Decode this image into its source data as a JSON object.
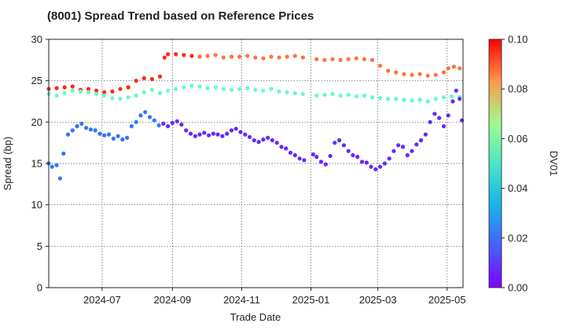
{
  "title": "(8001)   Spread Trend based on Reference Prices",
  "chart_data": {
    "type": "scatter",
    "title": "(8001)   Spread Trend based on Reference Prices",
    "xlabel": "Trade Date",
    "ylabel": "Spread (bp)",
    "colorbar_label": "DV01",
    "xlim": [
      "2024-05-15",
      "2025-05-15"
    ],
    "ylim": [
      0,
      30
    ],
    "y_ticks": [
      0,
      5,
      10,
      15,
      20,
      25,
      30
    ],
    "x_ticks": [
      {
        "date": "2024-07-01",
        "label": "2024-07"
      },
      {
        "date": "2024-09-01",
        "label": "2024-09"
      },
      {
        "date": "2024-11-01",
        "label": "2024-11"
      },
      {
        "date": "2025-01-01",
        "label": "2025-01"
      },
      {
        "date": "2025-03-01",
        "label": "2025-03"
      },
      {
        "date": "2025-05-01",
        "label": "2025-05"
      }
    ],
    "colorbar_ticks": [
      "0.00",
      "0.02",
      "0.04",
      "0.06",
      "0.08",
      "0.10"
    ],
    "colorbar_range": [
      0,
      0.1
    ],
    "colormap": "rainbow",
    "grid": true,
    "series": [
      {
        "dv01": 0.095,
        "points": [
          [
            "2024-05-15",
            24.0
          ],
          [
            "2024-05-22",
            24.1
          ],
          [
            "2024-05-29",
            24.2
          ],
          [
            "2024-06-05",
            24.3
          ],
          [
            "2024-06-12",
            23.9
          ],
          [
            "2024-06-19",
            24.0
          ],
          [
            "2024-06-26",
            23.8
          ],
          [
            "2024-07-03",
            23.6
          ],
          [
            "2024-07-10",
            23.7
          ],
          [
            "2024-07-17",
            24.0
          ],
          [
            "2024-07-24",
            24.2
          ],
          [
            "2024-07-31",
            25.0
          ],
          [
            "2024-08-07",
            25.3
          ],
          [
            "2024-08-14",
            25.2
          ],
          [
            "2024-08-21",
            25.5
          ],
          [
            "2024-08-25",
            27.8
          ],
          [
            "2024-08-28",
            28.2
          ],
          [
            "2024-09-04",
            28.2
          ],
          [
            "2024-09-11",
            28.1
          ],
          [
            "2024-09-18",
            28.0
          ]
        ]
      },
      {
        "dv01": 0.085,
        "points": [
          [
            "2024-09-25",
            27.9
          ],
          [
            "2024-10-02",
            28.0
          ],
          [
            "2024-10-09",
            28.1
          ],
          [
            "2024-10-16",
            27.8
          ],
          [
            "2024-10-23",
            27.9
          ],
          [
            "2024-10-30",
            27.9
          ],
          [
            "2024-11-06",
            28.0
          ],
          [
            "2024-11-13",
            27.8
          ],
          [
            "2024-11-20",
            27.7
          ],
          [
            "2024-11-27",
            27.9
          ],
          [
            "2024-12-04",
            27.8
          ],
          [
            "2024-12-11",
            27.9
          ],
          [
            "2024-12-18",
            28.0
          ],
          [
            "2024-12-25",
            27.8
          ],
          [
            "2025-01-06",
            27.6
          ],
          [
            "2025-01-13",
            27.5
          ],
          [
            "2025-01-20",
            27.6
          ],
          [
            "2025-01-27",
            27.5
          ],
          [
            "2025-02-03",
            27.6
          ],
          [
            "2025-02-10",
            27.7
          ],
          [
            "2025-02-17",
            27.6
          ],
          [
            "2025-02-24",
            27.5
          ],
          [
            "2025-03-03",
            26.8
          ],
          [
            "2025-03-10",
            26.2
          ],
          [
            "2025-03-17",
            26.0
          ],
          [
            "2025-03-24",
            25.8
          ],
          [
            "2025-03-31",
            25.7
          ],
          [
            "2025-04-07",
            25.8
          ],
          [
            "2025-04-14",
            25.6
          ],
          [
            "2025-04-21",
            25.7
          ],
          [
            "2025-04-28",
            26.0
          ],
          [
            "2025-05-02",
            26.5
          ],
          [
            "2025-05-07",
            26.7
          ],
          [
            "2025-05-12",
            26.5
          ]
        ]
      },
      {
        "dv01": 0.045,
        "points": [
          [
            "2024-05-15",
            23.4
          ],
          [
            "2024-05-22",
            23.2
          ],
          [
            "2024-05-29",
            23.5
          ],
          [
            "2024-06-05",
            23.8
          ],
          [
            "2024-06-12",
            23.7
          ],
          [
            "2024-06-19",
            23.6
          ],
          [
            "2024-06-26",
            23.4
          ],
          [
            "2024-07-03",
            23.2
          ],
          [
            "2024-07-10",
            22.9
          ],
          [
            "2024-07-17",
            22.8
          ],
          [
            "2024-07-24",
            23.0
          ],
          [
            "2024-07-31",
            23.2
          ],
          [
            "2024-08-07",
            23.6
          ],
          [
            "2024-08-14",
            23.9
          ],
          [
            "2024-08-21",
            23.5
          ],
          [
            "2024-08-28",
            23.8
          ],
          [
            "2024-09-04",
            24.0
          ],
          [
            "2024-09-11",
            24.2
          ],
          [
            "2024-09-18",
            24.4
          ],
          [
            "2024-09-25",
            24.3
          ],
          [
            "2024-10-02",
            24.1
          ],
          [
            "2024-10-09",
            24.2
          ],
          [
            "2024-10-16",
            24.0
          ],
          [
            "2024-10-23",
            23.9
          ],
          [
            "2024-10-30",
            24.0
          ],
          [
            "2024-11-06",
            24.1
          ],
          [
            "2024-11-13",
            23.9
          ],
          [
            "2024-11-20",
            23.8
          ],
          [
            "2024-11-27",
            24.0
          ],
          [
            "2024-12-04",
            23.7
          ],
          [
            "2024-12-11",
            23.6
          ],
          [
            "2024-12-18",
            23.5
          ],
          [
            "2024-12-25",
            23.4
          ],
          [
            "2025-01-06",
            23.2
          ],
          [
            "2025-01-13",
            23.3
          ],
          [
            "2025-01-20",
            23.4
          ],
          [
            "2025-01-27",
            23.2
          ],
          [
            "2025-02-03",
            23.3
          ],
          [
            "2025-02-10",
            23.1
          ],
          [
            "2025-02-17",
            23.2
          ],
          [
            "2025-02-24",
            23.0
          ],
          [
            "2025-03-03",
            22.9
          ],
          [
            "2025-03-10",
            22.8
          ],
          [
            "2025-03-17",
            22.8
          ],
          [
            "2025-03-24",
            22.7
          ],
          [
            "2025-03-31",
            22.6
          ],
          [
            "2025-04-07",
            22.7
          ],
          [
            "2025-04-14",
            22.5
          ],
          [
            "2025-04-21",
            22.8
          ],
          [
            "2025-04-28",
            23.0
          ],
          [
            "2025-05-05",
            23.1
          ],
          [
            "2025-05-12",
            23.0
          ]
        ]
      },
      {
        "dv01": 0.015,
        "points": [
          [
            "2024-05-15",
            15.0
          ],
          [
            "2024-05-18",
            14.6
          ],
          [
            "2024-05-22",
            14.8
          ],
          [
            "2024-05-25",
            13.2
          ],
          [
            "2024-05-28",
            16.2
          ],
          [
            "2024-06-01",
            18.5
          ],
          [
            "2024-06-05",
            19.0
          ],
          [
            "2024-06-09",
            19.5
          ],
          [
            "2024-06-13",
            19.8
          ],
          [
            "2024-06-17",
            19.3
          ],
          [
            "2024-06-21",
            19.1
          ],
          [
            "2024-06-25",
            19.0
          ],
          [
            "2024-06-29",
            18.6
          ],
          [
            "2024-07-03",
            18.4
          ],
          [
            "2024-07-07",
            18.5
          ],
          [
            "2024-07-11",
            18.0
          ],
          [
            "2024-07-15",
            18.3
          ],
          [
            "2024-07-19",
            17.9
          ],
          [
            "2024-07-23",
            18.1
          ],
          [
            "2024-07-27",
            19.5
          ],
          [
            "2024-07-31",
            20.0
          ],
          [
            "2024-08-04",
            20.8
          ],
          [
            "2024-08-08",
            21.2
          ],
          [
            "2024-08-12",
            20.6
          ],
          [
            "2024-08-16",
            20.2
          ],
          [
            "2024-08-20",
            19.6
          ]
        ]
      },
      {
        "dv01": 0.005,
        "points": [
          [
            "2024-08-24",
            19.8
          ],
          [
            "2024-08-28",
            19.5
          ],
          [
            "2024-09-01",
            19.9
          ],
          [
            "2024-09-05",
            20.1
          ],
          [
            "2024-09-09",
            19.7
          ],
          [
            "2024-09-13",
            19.0
          ],
          [
            "2024-09-17",
            18.6
          ],
          [
            "2024-09-21",
            18.3
          ],
          [
            "2024-09-25",
            18.5
          ],
          [
            "2024-09-29",
            18.7
          ],
          [
            "2024-10-03",
            18.4
          ],
          [
            "2024-10-07",
            18.6
          ],
          [
            "2024-10-11",
            18.5
          ],
          [
            "2024-10-15",
            18.3
          ],
          [
            "2024-10-19",
            18.6
          ],
          [
            "2024-10-23",
            19.0
          ],
          [
            "2024-10-27",
            19.2
          ],
          [
            "2024-10-31",
            18.8
          ],
          [
            "2024-11-04",
            18.5
          ],
          [
            "2024-11-08",
            18.2
          ],
          [
            "2024-11-12",
            17.8
          ],
          [
            "2024-11-16",
            17.6
          ],
          [
            "2024-11-20",
            17.9
          ],
          [
            "2024-11-24",
            18.1
          ],
          [
            "2024-11-28",
            17.8
          ],
          [
            "2024-12-02",
            17.5
          ],
          [
            "2024-12-06",
            17.0
          ],
          [
            "2024-12-10",
            16.8
          ],
          [
            "2024-12-14",
            16.3
          ],
          [
            "2024-12-18",
            16.0
          ],
          [
            "2024-12-22",
            15.6
          ],
          [
            "2024-12-26",
            15.4
          ],
          [
            "2025-01-03",
            16.1
          ],
          [
            "2025-01-06",
            15.8
          ],
          [
            "2025-01-10",
            15.2
          ],
          [
            "2025-01-14",
            14.9
          ],
          [
            "2025-01-18",
            15.9
          ],
          [
            "2025-01-22",
            17.5
          ],
          [
            "2025-01-26",
            17.8
          ],
          [
            "2025-01-30",
            17.2
          ],
          [
            "2025-02-03",
            16.5
          ],
          [
            "2025-02-07",
            16.0
          ],
          [
            "2025-02-11",
            15.8
          ],
          [
            "2025-02-15",
            15.2
          ],
          [
            "2025-02-19",
            15.1
          ],
          [
            "2025-02-23",
            14.6
          ],
          [
            "2025-02-27",
            14.3
          ],
          [
            "2025-03-03",
            14.6
          ],
          [
            "2025-03-07",
            15.0
          ],
          [
            "2025-03-11",
            15.6
          ],
          [
            "2025-03-15",
            16.5
          ],
          [
            "2025-03-19",
            17.2
          ],
          [
            "2025-03-23",
            17.0
          ],
          [
            "2025-03-27",
            16.0
          ],
          [
            "2025-03-31",
            16.5
          ],
          [
            "2025-04-04",
            17.3
          ],
          [
            "2025-04-08",
            17.8
          ],
          [
            "2025-04-12",
            18.5
          ],
          [
            "2025-04-16",
            20.0
          ],
          [
            "2025-04-20",
            21.0
          ],
          [
            "2025-04-24",
            20.5
          ],
          [
            "2025-04-28",
            19.5
          ],
          [
            "2025-05-02",
            20.8
          ],
          [
            "2025-05-06",
            22.5
          ],
          [
            "2025-05-09",
            23.8
          ],
          [
            "2025-05-12",
            22.8
          ],
          [
            "2025-05-14",
            20.2
          ]
        ]
      }
    ]
  }
}
